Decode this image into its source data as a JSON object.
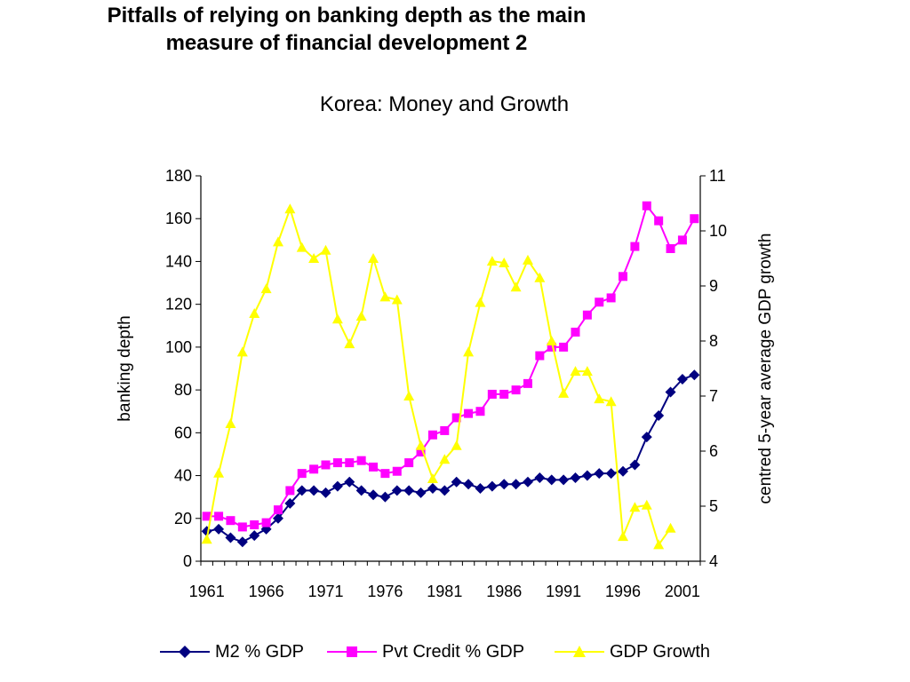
{
  "slide": {
    "title_line1": "Pitfalls of relying on banking depth as the main",
    "title_line2": "measure of financial development 2"
  },
  "chart_data": {
    "type": "line",
    "title": "Korea: Money and Growth",
    "ylabel_left": "banking depth",
    "ylabel_right": "centred 5-year average GDP growth",
    "ylim_left": [
      0,
      180
    ],
    "ylim_right": [
      4,
      11
    ],
    "yticks_left": [
      "0",
      "20",
      "40",
      "60",
      "80",
      "100",
      "120",
      "140",
      "160",
      "180"
    ],
    "yticks_right": [
      "4",
      "5",
      "6",
      "7",
      "8",
      "9",
      "10",
      "11"
    ],
    "xticks": [
      "1961",
      "1966",
      "1971",
      "1976",
      "1981",
      "1986",
      "1991",
      "1996",
      "2001"
    ],
    "x": [
      1961,
      1962,
      1963,
      1964,
      1965,
      1966,
      1967,
      1968,
      1969,
      1970,
      1971,
      1972,
      1973,
      1974,
      1975,
      1976,
      1977,
      1978,
      1979,
      1980,
      1981,
      1982,
      1983,
      1984,
      1985,
      1986,
      1987,
      1988,
      1989,
      1990,
      1991,
      1992,
      1993,
      1994,
      1995,
      1996,
      1997,
      1998,
      1999,
      2000,
      2001,
      2002
    ],
    "legend_position": "bottom",
    "series": [
      {
        "name": "M2 % GDP",
        "axis": "left",
        "color": "#000080",
        "marker": "diamond",
        "values": [
          14,
          15,
          11,
          9,
          12,
          15,
          20,
          27,
          33,
          33,
          32,
          35,
          37,
          33,
          31,
          30,
          33,
          33,
          32,
          34,
          33,
          37,
          36,
          34,
          35,
          36,
          36,
          37,
          39,
          38,
          38,
          39,
          40,
          41,
          41,
          42,
          45,
          58,
          68,
          79,
          85,
          87
        ]
      },
      {
        "name": "Pvt Credit % GDP",
        "axis": "left",
        "color": "#ff00ff",
        "marker": "square",
        "values": [
          21,
          21,
          19,
          16,
          17,
          18,
          24,
          33,
          41,
          43,
          45,
          46,
          46,
          47,
          44,
          41,
          42,
          46,
          51,
          59,
          61,
          67,
          69,
          70,
          78,
          78,
          80,
          83,
          96,
          100,
          100,
          107,
          115,
          121,
          123,
          133,
          147,
          166,
          159,
          146,
          150,
          160
        ]
      },
      {
        "name": "GDP Growth",
        "axis": "right",
        "color": "#ffff00",
        "marker": "triangle",
        "values": [
          4.4,
          5.6,
          6.5,
          7.8,
          8.5,
          8.95,
          9.8,
          10.4,
          9.7,
          9.5,
          9.65,
          8.4,
          7.95,
          8.45,
          9.5,
          8.8,
          8.75,
          7.0,
          6.1,
          5.5,
          5.85,
          6.1,
          7.8,
          8.7,
          9.45,
          9.42,
          8.98,
          9.47,
          9.15,
          8.0,
          7.05,
          7.45,
          7.45,
          6.95,
          6.9,
          4.45,
          4.98,
          5.02,
          4.3,
          4.6,
          null,
          null
        ]
      }
    ]
  }
}
